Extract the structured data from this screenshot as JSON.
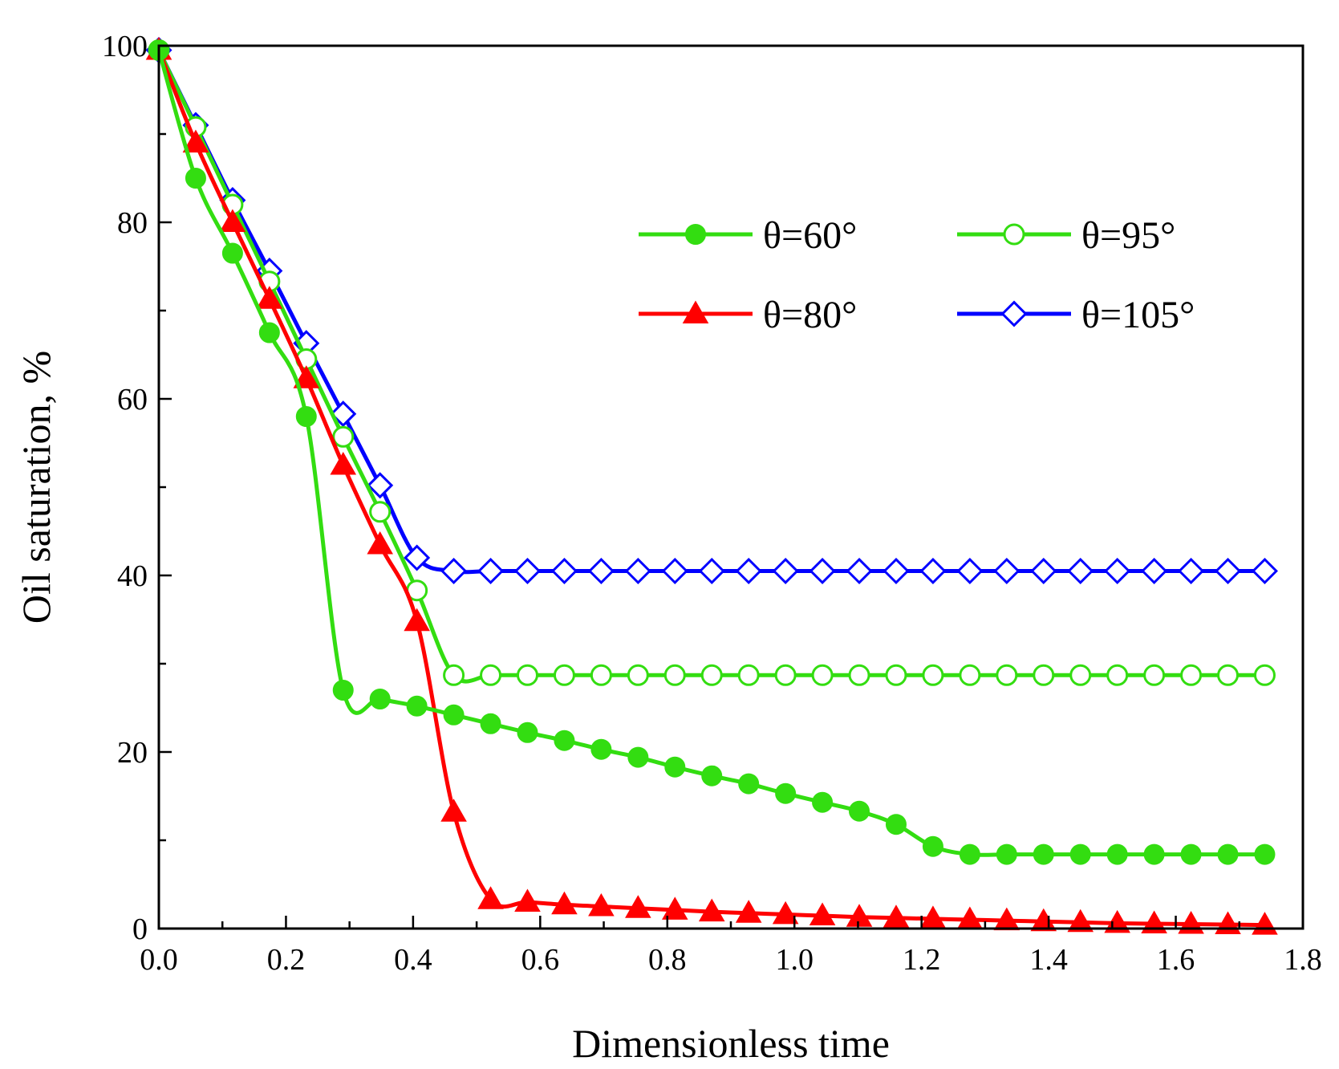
{
  "chart_data": {
    "type": "line",
    "title": "",
    "xlabel": "Dimensionless time",
    "ylabel": "Oil saturation, %",
    "xlim": [
      0.0,
      1.8
    ],
    "ylim": [
      0,
      100
    ],
    "xticks": [
      "0.0",
      "0.2",
      "0.4",
      "0.6",
      "0.8",
      "1.0",
      "1.2",
      "1.4",
      "1.6",
      "1.8"
    ],
    "yticks": [
      "0",
      "20",
      "40",
      "60",
      "80",
      "100"
    ],
    "grid": false,
    "legend_position": "top-right",
    "x": [
      0.0,
      0.058,
      0.116,
      0.174,
      0.232,
      0.29,
      0.348,
      0.406,
      0.464,
      0.522,
      0.58,
      0.638,
      0.696,
      0.754,
      0.812,
      0.87,
      0.928,
      0.986,
      1.044,
      1.102,
      1.16,
      1.218,
      1.276,
      1.334,
      1.392,
      1.45,
      1.508,
      1.566,
      1.624,
      1.682,
      1.74
    ],
    "series": [
      {
        "name": "θ=60°",
        "color": "#33dd11",
        "marker": "filled-circle",
        "values": [
          99.5,
          85,
          76.5,
          67.5,
          58,
          27,
          26,
          25.2,
          24.2,
          23.2,
          22.2,
          21.3,
          20.3,
          19.4,
          18.3,
          17.3,
          16.4,
          15.3,
          14.3,
          13.3,
          11.8,
          9.3,
          8.4,
          8.4,
          8.4,
          8.4,
          8.4,
          8.4,
          8.4,
          8.4,
          8.4
        ]
      },
      {
        "name": "θ=95°",
        "color": "#33dd11",
        "marker": "open-circle",
        "values": [
          99.5,
          90.8,
          82,
          73.3,
          64.5,
          55.7,
          47.2,
          38.3,
          28.7,
          28.7,
          28.7,
          28.7,
          28.7,
          28.7,
          28.7,
          28.7,
          28.7,
          28.7,
          28.7,
          28.7,
          28.7,
          28.7,
          28.7,
          28.7,
          28.7,
          28.7,
          28.7,
          28.7,
          28.7,
          28.7,
          28.7
        ]
      },
      {
        "name": "θ=80°",
        "color": "#ff0000",
        "marker": "filled-triangle",
        "values": [
          99.5,
          89,
          80,
          71.3,
          62.3,
          52.5,
          43.5,
          34.8,
          13.2,
          3.3,
          3,
          2.7,
          2.5,
          2.3,
          2.1,
          1.9,
          1.75,
          1.6,
          1.45,
          1.3,
          1.2,
          1.1,
          1.0,
          0.9,
          0.8,
          0.7,
          0.6,
          0.55,
          0.5,
          0.45,
          0.4
        ]
      },
      {
        "name": "θ=105°",
        "color": "#0000ff",
        "marker": "open-diamond",
        "values": [
          99.5,
          91,
          82.5,
          74.5,
          66.3,
          58.3,
          50.2,
          42,
          40.5,
          40.5,
          40.5,
          40.5,
          40.5,
          40.5,
          40.5,
          40.5,
          40.5,
          40.5,
          40.5,
          40.5,
          40.5,
          40.5,
          40.5,
          40.5,
          40.5,
          40.5,
          40.5,
          40.5,
          40.5,
          40.5,
          40.5
        ]
      }
    ]
  }
}
